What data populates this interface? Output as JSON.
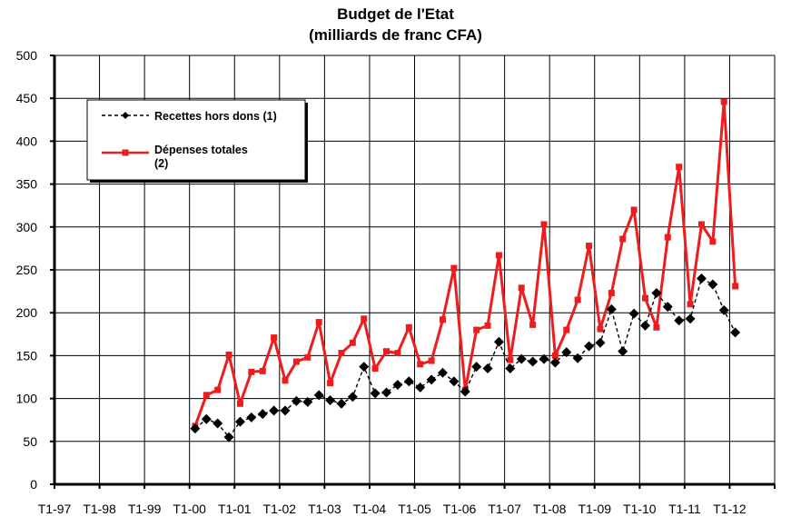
{
  "chart_data": {
    "type": "line",
    "title": "Budget de l'Etat",
    "subtitle": "(milliards de franc CFA)",
    "xlabel": "",
    "ylabel": "",
    "ylim": [
      0,
      500
    ],
    "y_ticks": [
      0,
      50,
      100,
      150,
      200,
      250,
      300,
      350,
      400,
      450,
      500
    ],
    "x_tick_labels": [
      "T1-97",
      "T1-98",
      "T1-99",
      "T1-00",
      "T1-01",
      "T1-02",
      "T1-03",
      "T1-04",
      "T1-05",
      "T1-06",
      "T1-07",
      "T1-08",
      "T1-09",
      "T1-10",
      "T1-11",
      "T1-12"
    ],
    "grid": true,
    "legend_position": "top-left",
    "series": [
      {
        "name": "Recettes hors dons (1)",
        "color": "#000000",
        "style": "dashed",
        "marker": "diamond",
        "start_quarter_index": 12,
        "values": [
          65,
          76,
          71,
          55,
          73,
          78,
          82,
          86,
          86,
          97,
          96,
          104,
          98,
          94,
          102,
          137,
          106,
          107,
          116,
          120,
          113,
          122,
          130,
          120,
          108,
          137,
          135,
          166,
          135,
          146,
          143,
          146,
          142,
          154,
          147,
          161,
          165,
          204,
          155,
          199,
          185,
          223,
          207,
          191,
          193,
          240,
          233,
          203,
          177
        ]
      },
      {
        "name": "Dépenses totales (2)",
        "color": "#ee1c1c",
        "style": "solid",
        "marker": "square",
        "start_quarter_index": 12,
        "values": [
          68,
          104,
          110,
          151,
          94,
          131,
          132,
          171,
          121,
          143,
          148,
          189,
          118,
          153,
          165,
          193,
          135,
          155,
          153,
          183,
          140,
          144,
          192,
          252,
          110,
          180,
          185,
          267,
          145,
          229,
          186,
          303,
          150,
          180,
          215,
          278,
          181,
          223,
          286,
          320,
          217,
          183,
          288,
          370,
          210,
          303,
          283,
          446,
          231
        ]
      }
    ]
  }
}
